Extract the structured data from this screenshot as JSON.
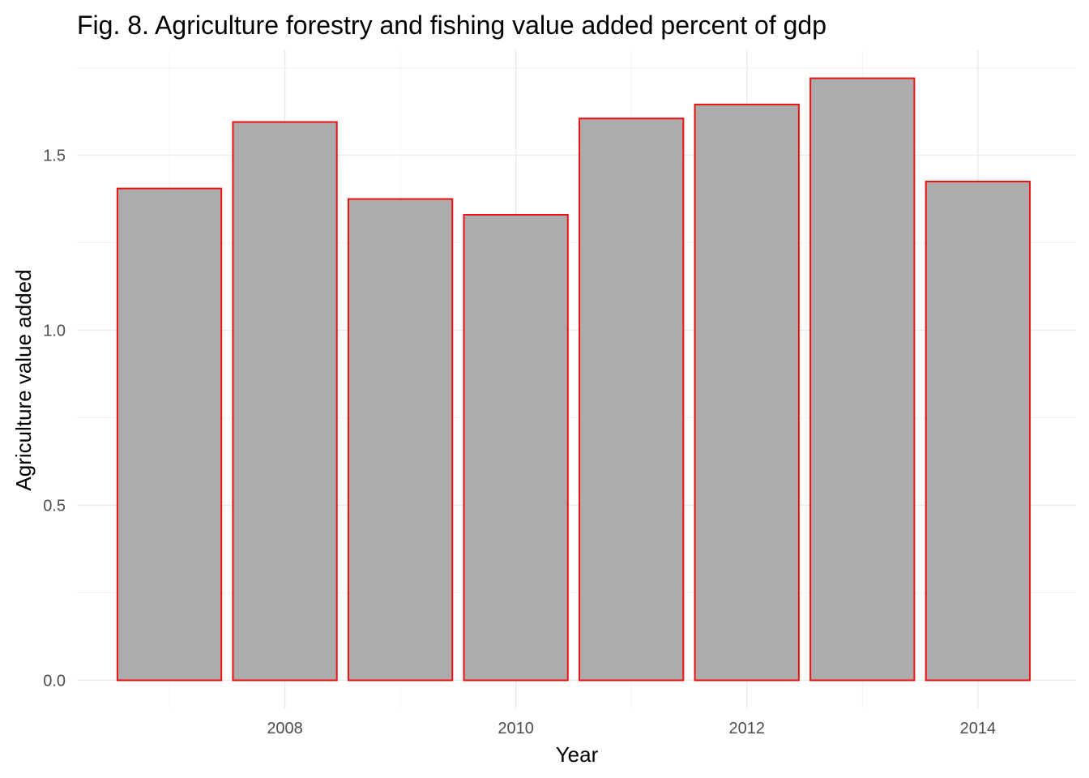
{
  "chart_data": {
    "type": "bar",
    "title": "Fig. 8. Agriculture forestry and fishing value added percent of gdp",
    "xlabel": "Year",
    "ylabel": "Agriculture value added",
    "categories": [
      2007,
      2008,
      2009,
      2010,
      2011,
      2012,
      2013,
      2014
    ],
    "values": [
      1.405,
      1.595,
      1.375,
      1.33,
      1.605,
      1.645,
      1.72,
      1.425
    ],
    "x_ticks": [
      2008,
      2010,
      2012,
      2014
    ],
    "x_tick_labels": [
      "2008",
      "2010",
      "2012",
      "2014"
    ],
    "y_ticks": [
      0.0,
      0.5,
      1.0,
      1.5
    ],
    "y_tick_labels": [
      "0.0",
      "0.5",
      "1.0",
      "1.5"
    ],
    "xlim": [
      2006.2,
      2014.85
    ],
    "ylim": [
      -0.08,
      1.8
    ],
    "grid": true,
    "legend": "none",
    "colors": {
      "bar_fill": "#acacac",
      "bar_outline": "#ee1111",
      "grid_major": "#ebebeb",
      "grid_minor": "#f3f3f3"
    }
  }
}
